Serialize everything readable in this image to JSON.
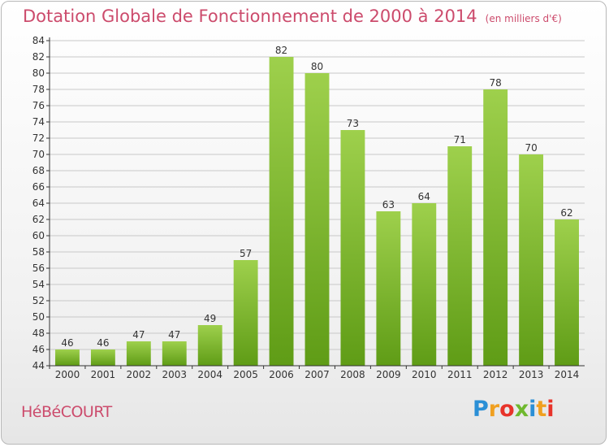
{
  "title": "Dotation Globale de Fonctionnement de 2000 à 2014",
  "subtitle": "(en milliers d'€)",
  "town": "HéBéCOURT",
  "logo": {
    "letters": [
      "P",
      "r",
      "o",
      "x",
      "i",
      "t",
      "i"
    ],
    "colors": [
      "#2a8fd6",
      "#f0a020",
      "#e8332a",
      "#6fb82e",
      "#2a8fd6",
      "#f0a020",
      "#e8332a"
    ]
  },
  "colors": {
    "bar_light": "#9ed04c",
    "bar_dark": "#5f9c16",
    "title": "#cc4b6c",
    "axis": "#333333",
    "grid": "#c8c8c8"
  },
  "chart_data": {
    "type": "bar",
    "title": "Dotation Globale de Fonctionnement de 2000 à 2014",
    "subtitle": "(en milliers d'€)",
    "xlabel": "",
    "ylabel": "",
    "categories": [
      "2000",
      "2001",
      "2002",
      "2003",
      "2004",
      "2005",
      "2006",
      "2007",
      "2008",
      "2009",
      "2010",
      "2011",
      "2012",
      "2013",
      "2014"
    ],
    "values": [
      46,
      46,
      47,
      47,
      49,
      57,
      82,
      80,
      73,
      63,
      64,
      71,
      78,
      70,
      62
    ],
    "ylim": [
      44,
      84
    ],
    "yticks": [
      44,
      46,
      48,
      50,
      52,
      54,
      56,
      58,
      60,
      62,
      64,
      66,
      68,
      70,
      72,
      74,
      76,
      78,
      80,
      82,
      84
    ],
    "grid": true,
    "legend": "none"
  }
}
